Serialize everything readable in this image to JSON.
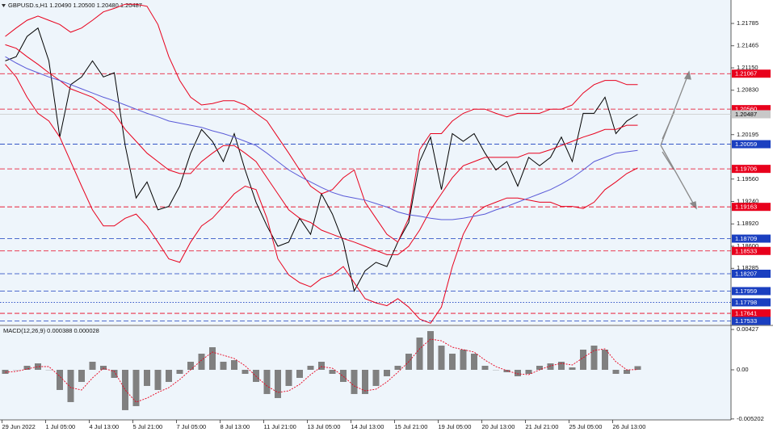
{
  "chart_data": [
    {
      "type": "line",
      "title": "GBPUSD.s,H1  1.20490 1.20500 1.20480 1.20487",
      "categories": [
        "29 Jun 2022",
        null,
        null,
        null,
        "1 Jul 05:00",
        null,
        null,
        null,
        "4 Jul 13:00",
        null,
        null,
        null,
        "5 Jul 21:00",
        null,
        null,
        null,
        "7 Jul 05:00",
        null,
        null,
        null,
        "8 Jul 13:00",
        null,
        null,
        null,
        "11 Jul 21:00",
        null,
        null,
        null,
        "13 Jul 05:00",
        null,
        null,
        null,
        "14 Jul 13:00",
        null,
        null,
        null,
        "15 Jul 21:00",
        null,
        null,
        null,
        "19 Jul 05:00",
        null,
        null,
        null,
        "20 Jul 13:00",
        null,
        null,
        null,
        "21 Jul 21:00",
        null,
        null,
        null,
        "25 Jul 05:00",
        null,
        null,
        null,
        "26 Jul 13:00",
        null,
        null
      ],
      "series": [
        {
          "color": "#000000",
          "values": [
            1.2125,
            1.2131,
            1.216,
            1.2172,
            1.2125,
            1.2016,
            1.2091,
            1.2102,
            1.2125,
            1.2102,
            1.2108,
            1.2004,
            1.1929,
            1.1952,
            1.1912,
            1.1917,
            1.1946,
            1.1993,
            1.2027,
            1.201,
            1.1981,
            1.2021,
            1.1969,
            1.1923,
            1.1889,
            1.186,
            1.1866,
            1.19,
            1.1877,
            1.1935,
            1.1906,
            1.1866,
            1.1796,
            1.1825,
            1.1837,
            1.1831,
            1.1866,
            1.1894,
            1.1981,
            1.2016,
            1.1941,
            1.2021,
            1.201,
            1.2021,
            1.1993,
            1.1969,
            1.1981,
            1.1946,
            1.1987,
            1.1975,
            1.1987,
            1.2016,
            1.1981,
            1.205,
            1.205,
            1.2073,
            1.2021,
            1.2039,
            1.20487
          ]
        },
        {
          "color": "#e8001c",
          "values": [
            1.216,
            1.2172,
            1.2183,
            1.2189,
            1.2183,
            1.2177,
            1.2166,
            1.2172,
            1.2183,
            1.2195,
            1.22,
            1.2206,
            1.2206,
            1.2203,
            1.2177,
            1.2131,
            1.2097,
            1.2073,
            1.2062,
            1.2064,
            1.2068,
            1.2068,
            1.2062,
            1.205,
            1.2039,
            1.2016,
            1.1993,
            1.1969,
            1.1946,
            1.1935,
            1.1941,
            1.1958,
            1.1969,
            1.1923,
            1.19,
            1.1877,
            1.1866,
            1.19,
            1.1998,
            1.2021,
            1.2021,
            1.2039,
            1.205,
            1.2056,
            1.2056,
            1.205,
            1.2045,
            1.205,
            1.205,
            1.205,
            1.2056,
            1.2056,
            1.2062,
            1.2079,
            1.2091,
            1.2097,
            1.2097,
            1.2091,
            1.2091
          ]
        },
        {
          "color": "#e8001c",
          "values": [
            1.2148,
            1.2143,
            1.2131,
            1.212,
            1.2108,
            1.2097,
            1.2085,
            1.2079,
            1.2073,
            1.2062,
            1.205,
            1.2027,
            1.201,
            1.1993,
            1.1981,
            1.1969,
            1.1964,
            1.1964,
            1.1981,
            1.1993,
            1.2004,
            1.2004,
            1.1993,
            1.1981,
            1.1958,
            1.1935,
            1.1912,
            1.19,
            1.1894,
            1.1883,
            1.1877,
            1.1871,
            1.1866,
            1.186,
            1.1854,
            1.1848,
            1.1848,
            1.186,
            1.1883,
            1.1912,
            1.1935,
            1.1958,
            1.1975,
            1.1981,
            1.1987,
            1.1987,
            1.1987,
            1.1987,
            1.1993,
            1.1993,
            1.1998,
            1.2004,
            1.201,
            1.2016,
            1.2021,
            1.2027,
            1.2027,
            1.2033,
            1.2033
          ]
        },
        {
          "color": "#e8001c",
          "values": [
            1.212,
            1.2102,
            1.2073,
            1.205,
            1.2039,
            1.2016,
            1.1981,
            1.1946,
            1.1912,
            1.1889,
            1.1889,
            1.19,
            1.1906,
            1.1889,
            1.1866,
            1.1842,
            1.1837,
            1.1866,
            1.1889,
            1.19,
            1.1917,
            1.1935,
            1.1946,
            1.1941,
            1.19,
            1.1842,
            1.1819,
            1.1808,
            1.1802,
            1.1814,
            1.1819,
            1.1831,
            1.1808,
            1.1785,
            1.1779,
            1.1775,
            1.1785,
            1.1773,
            1.1756,
            1.175,
            1.1773,
            1.1831,
            1.1877,
            1.1906,
            1.1917,
            1.1923,
            1.1929,
            1.1929,
            1.1926,
            1.1923,
            1.1923,
            1.1917,
            1.1917,
            1.1914,
            1.1923,
            1.1941,
            1.1952,
            1.1964,
            1.1972
          ]
        },
        {
          "color": "#5a5ad8",
          "values": [
            1.2131,
            1.2122,
            1.2114,
            1.2108,
            1.2102,
            1.2097,
            1.2091,
            1.2085,
            1.2079,
            1.2073,
            1.2068,
            1.2062,
            1.2056,
            1.205,
            1.2045,
            1.2039,
            1.2036,
            1.2033,
            1.203,
            1.2025,
            1.2021,
            1.2016,
            1.201,
            1.2004,
            1.1993,
            1.1981,
            1.1969,
            1.196,
            1.1952,
            1.1944,
            1.1937,
            1.1932,
            1.1929,
            1.1926,
            1.1921,
            1.1916,
            1.1909,
            1.1905,
            1.1903,
            1.19,
            1.1898,
            1.1898,
            1.19,
            1.1903,
            1.1906,
            1.1912,
            1.1917,
            1.1923,
            1.1929,
            1.1935,
            1.1941,
            1.1949,
            1.1958,
            1.1969,
            1.1981,
            1.1987,
            1.1993,
            1.1995,
            1.1997
          ]
        }
      ],
      "ylim": [
        1.1748,
        1.2212
      ],
      "yticks": [
        1.21785,
        1.21465,
        {
          "value": 1.2115,
          "label": "1.21150"
        },
        {
          "value": 1.2083,
          "label": "1.20830"
        },
        1.20195,
        {
          "value": 1.1956,
          "label": "1.19560"
        },
        {
          "value": 1.1924,
          "label": "1.19240"
        },
        {
          "value": 1.1892,
          "label": "1.18920"
        },
        {
          "value": 1.186,
          "label": "1.18600"
        },
        1.18285
      ],
      "levels": [
        {
          "value": 1.21067,
          "color": "#e8001c",
          "style": "dashed"
        },
        {
          "value": 1.2056,
          "label": "1.20560",
          "color": "#e8001c",
          "style": "dashed"
        },
        {
          "value": 1.20487,
          "color": "#c8c8c8",
          "text_color": "#000000",
          "style": "solid"
        },
        {
          "value": 1.20059,
          "color": "#1a3fc0",
          "style": "dashed"
        },
        {
          "value": 1.19706,
          "color": "#e8001c",
          "style": "dashed"
        },
        {
          "value": 1.19163,
          "color": "#e8001c",
          "style": "dashed"
        },
        {
          "value": 1.18709,
          "color": "#1a3fc0",
          "style": "dashed"
        },
        {
          "value": 1.18533,
          "color": "#e8001c",
          "style": "dashed"
        },
        {
          "value": 1.18207,
          "color": "#1a3fc0",
          "style": "dashed"
        },
        {
          "value": 1.17959,
          "color": "#1a3fc0",
          "style": "dashed"
        },
        {
          "value": 1.17798,
          "color": "#1a3fc0",
          "style": "dotted"
        },
        {
          "value": 1.17641,
          "color": "#e8001c",
          "style": "dashed"
        },
        {
          "value": 1.17533,
          "color": "#1a3fc0",
          "style": "dashed"
        }
      ]
    },
    {
      "type": "bar",
      "title": "MACD(12,26,9) 0.000388 0.000028",
      "series": [
        {
          "type": "bar",
          "color": "#808080",
          "values": [
            -0.000427,
            0,
            0.000427,
            0.000683,
            0,
            -0.002135,
            -0.003416,
            -0.001281,
            0.000854,
            0.000427,
            -0.000854,
            -0.00427,
            -0.003843,
            -0.001708,
            -0.002135,
            -0.001281,
            -0.000427,
            0.000854,
            0.001708,
            0.002391,
            0.000854,
            0.001025,
            -0.000427,
            -0.001281,
            -0.002562,
            -0.002989,
            -0.001708,
            -0.000854,
            0.000427,
            0.000854,
            -0.000427,
            -0.001281,
            -0.002562,
            -0.002562,
            -0.001708,
            -0.000683,
            0.000427,
            0.001708,
            0.003416,
            0.004099,
            0.002562,
            0.001708,
            0.002135,
            0.001708,
            0.000427,
            0,
            -0.000256,
            -0.000683,
            -0.000427,
            0.000427,
            0.000683,
            0.000854,
            0.000256,
            0.002135,
            0.002562,
            0.002135,
            -0.000427,
            -0.000427,
            0.000388
          ]
        },
        {
          "type": "line",
          "color": "#e8001c",
          "values": [
            -0.000256,
            -0.000171,
            8.5e-05,
            0.000342,
            0.000342,
            -0.000683,
            -0.001879,
            -0.002135,
            -0.000854,
            0.000171,
            -0.000171,
            -0.002135,
            -0.003416,
            -0.002989,
            -0.002391,
            -0.001879,
            -0.001025,
            0,
            0.001025,
            0.001879,
            0.001537,
            0.001196,
            0.000427,
            -0.000683,
            -0.001708,
            -0.002391,
            -0.00222,
            -0.001537,
            -0.000512,
            0.000342,
            0.000171,
            -0.000683,
            -0.001708,
            -0.00222,
            -0.00205,
            -0.001281,
            -0.000256,
            0.000854,
            0.00222,
            0.003245,
            0.003074,
            0.002391,
            0.002135,
            0.001879,
            0.001025,
            0.000342,
            -8.5e-05,
            -0.000427,
            -0.000512,
            0,
            0.000427,
            0.000683,
            0.000512,
            0.001281,
            0.00205,
            0.00222,
            0.000854,
            0,
            2.8e-05
          ]
        }
      ],
      "ylim": [
        -0.0053,
        0.0047
      ],
      "yticks": [
        0.00427,
        {
          "value": 0,
          "label": "0.00"
        },
        -0.005202
      ]
    }
  ]
}
